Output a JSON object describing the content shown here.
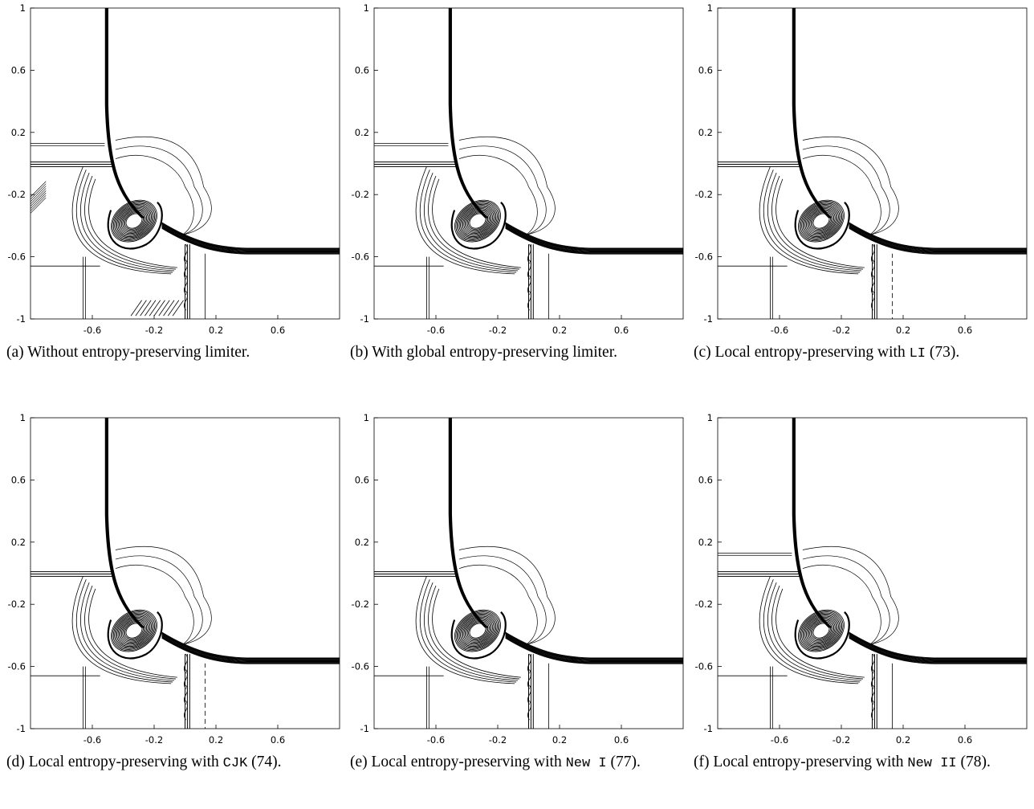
{
  "figure": {
    "axes": {
      "x_ticks": [
        "-0.6",
        "-0.2",
        "0.2",
        "0.6"
      ],
      "x_tick_values": [
        -0.6,
        -0.2,
        0.2,
        0.6
      ],
      "y_ticks": [
        "1",
        "0.6",
        "0.2",
        "-0.2",
        "-0.6",
        "-1"
      ],
      "y_tick_values": [
        1,
        0.6,
        0.2,
        -0.2,
        -0.6,
        -1
      ],
      "xlim": [
        -1,
        1
      ],
      "ylim": [
        -1,
        1
      ]
    },
    "panels": [
      {
        "id": "a",
        "caption_pre": "(a) Without entropy-preserving limiter.",
        "caption_code": "",
        "caption_post": ""
      },
      {
        "id": "b",
        "caption_pre": "(b) With global entropy-preserving limiter.",
        "caption_code": "",
        "caption_post": ""
      },
      {
        "id": "c",
        "caption_pre": "(c) Local entropy-preserving with ",
        "caption_code": "LI",
        "caption_post": " (73)."
      },
      {
        "id": "d",
        "caption_pre": "(d) Local entropy-preserving with ",
        "caption_code": "CJK",
        "caption_post": " (74)."
      },
      {
        "id": "e",
        "caption_pre": "(e) Local entropy-preserving with ",
        "caption_code": "New I",
        "caption_post": " (77)."
      },
      {
        "id": "f",
        "caption_pre": "(f) Local entropy-preserving with ",
        "caption_code": "New II",
        "caption_post": " (78)."
      }
    ]
  },
  "chart_data": [
    {
      "type": "contour",
      "panel": "a",
      "xlim": [
        -1,
        1
      ],
      "ylim": [
        -1,
        1
      ],
      "grid": false
    },
    {
      "type": "contour",
      "panel": "b",
      "xlim": [
        -1,
        1
      ],
      "ylim": [
        -1,
        1
      ],
      "grid": false
    },
    {
      "type": "contour",
      "panel": "c",
      "xlim": [
        -1,
        1
      ],
      "ylim": [
        -1,
        1
      ],
      "grid": false
    },
    {
      "type": "contour",
      "panel": "d",
      "xlim": [
        -1,
        1
      ],
      "ylim": [
        -1,
        1
      ],
      "grid": false
    },
    {
      "type": "contour",
      "panel": "e",
      "xlim": [
        -1,
        1
      ],
      "ylim": [
        -1,
        1
      ],
      "grid": false
    },
    {
      "type": "contour",
      "panel": "f",
      "xlim": [
        -1,
        1
      ],
      "ylim": [
        -1,
        1
      ],
      "grid": false
    }
  ]
}
